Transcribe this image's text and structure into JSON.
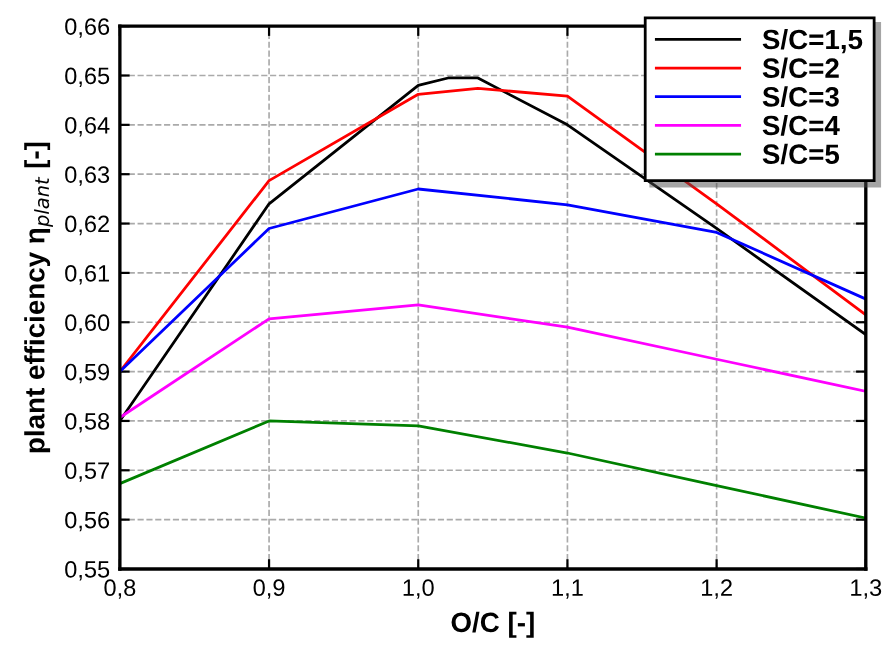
{
  "chart_data": {
    "type": "line",
    "xlabel": "O/C [-]",
    "ylabel": "plant efficiency η$_{plant}$ [-]",
    "xlim": [
      0.8,
      1.3
    ],
    "ylim": [
      0.55,
      0.66
    ],
    "xticks": [
      {
        "value": 0.8,
        "label": "0,8"
      },
      {
        "value": 0.9,
        "label": "0,9"
      },
      {
        "value": 1.0,
        "label": "1,0"
      },
      {
        "value": 1.1,
        "label": "1,1"
      },
      {
        "value": 1.2,
        "label": "1,2"
      },
      {
        "value": 1.3,
        "label": "1,3"
      }
    ],
    "yticks": [
      {
        "value": 0.55,
        "label": "0,55"
      },
      {
        "value": 0.56,
        "label": "0,56"
      },
      {
        "value": 0.57,
        "label": "0,57"
      },
      {
        "value": 0.58,
        "label": "0,58"
      },
      {
        "value": 0.59,
        "label": "0,59"
      },
      {
        "value": 0.6,
        "label": "0,60"
      },
      {
        "value": 0.61,
        "label": "0,61"
      },
      {
        "value": 0.62,
        "label": "0,62"
      },
      {
        "value": 0.63,
        "label": "0,63"
      },
      {
        "value": 0.64,
        "label": "0,64"
      },
      {
        "value": 0.65,
        "label": "0,65"
      },
      {
        "value": 0.66,
        "label": "0,66"
      }
    ],
    "grid": true,
    "legend": "top right",
    "marker": "none",
    "line_style": "solid",
    "series": [
      {
        "name": "S/C=1,5",
        "color": "#000000",
        "x": [
          0.8,
          0.9,
          1.0,
          1.02,
          1.04,
          1.1,
          1.2,
          1.3
        ],
        "values": [
          0.58,
          0.624,
          0.648,
          0.6495,
          0.6495,
          0.64,
          0.619,
          0.5975
        ]
      },
      {
        "name": "S/C=2",
        "color": "#ff0000",
        "x": [
          0.8,
          0.9,
          1.0,
          1.04,
          1.1,
          1.2,
          1.3
        ],
        "values": [
          0.59,
          0.6287,
          0.6462,
          0.6474,
          0.6458,
          0.624,
          0.6015
        ]
      },
      {
        "name": "S/C=3",
        "color": "#0000ff",
        "x": [
          0.8,
          0.9,
          1.0,
          1.1,
          1.2,
          1.3
        ],
        "values": [
          0.59,
          0.619,
          0.627,
          0.6238,
          0.6182,
          0.6047
        ]
      },
      {
        "name": "S/C=4",
        "color": "#ff00ff",
        "x": [
          0.8,
          0.9,
          1.0,
          1.1,
          1.2,
          1.3
        ],
        "values": [
          0.5807,
          0.6007,
          0.6035,
          0.599,
          0.5925,
          0.586
        ]
      },
      {
        "name": "S/C=5",
        "color": "#008000",
        "x": [
          0.8,
          0.9,
          1.0,
          1.1,
          1.2,
          1.3
        ],
        "values": [
          0.5673,
          0.58,
          0.579,
          0.5735,
          0.5669,
          0.5603
        ]
      }
    ]
  }
}
